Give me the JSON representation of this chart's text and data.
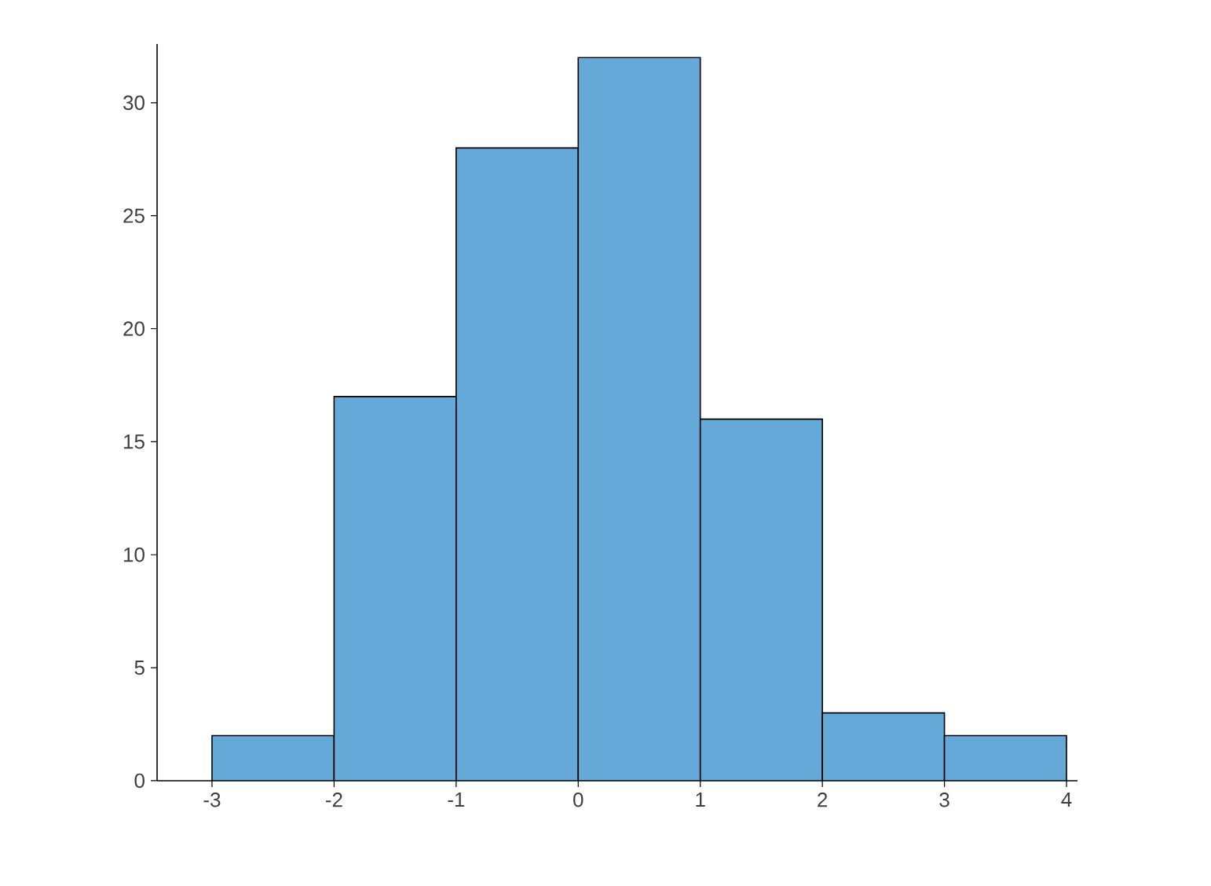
{
  "chart_data": {
    "type": "histogram",
    "bins": [
      -3,
      -2,
      -1,
      0,
      1,
      2,
      3,
      4
    ],
    "values": [
      2,
      17,
      28,
      32,
      16,
      3,
      2
    ],
    "color": "#64a9d7",
    "xlim": [
      -3.45,
      4.09
    ],
    "ylim": [
      0,
      32.6
    ],
    "xticks": [
      -3,
      -2,
      -1,
      0,
      1,
      2,
      3,
      4
    ],
    "yticks": [
      0,
      5,
      10,
      15,
      20,
      25,
      30
    ],
    "grid": false
  }
}
